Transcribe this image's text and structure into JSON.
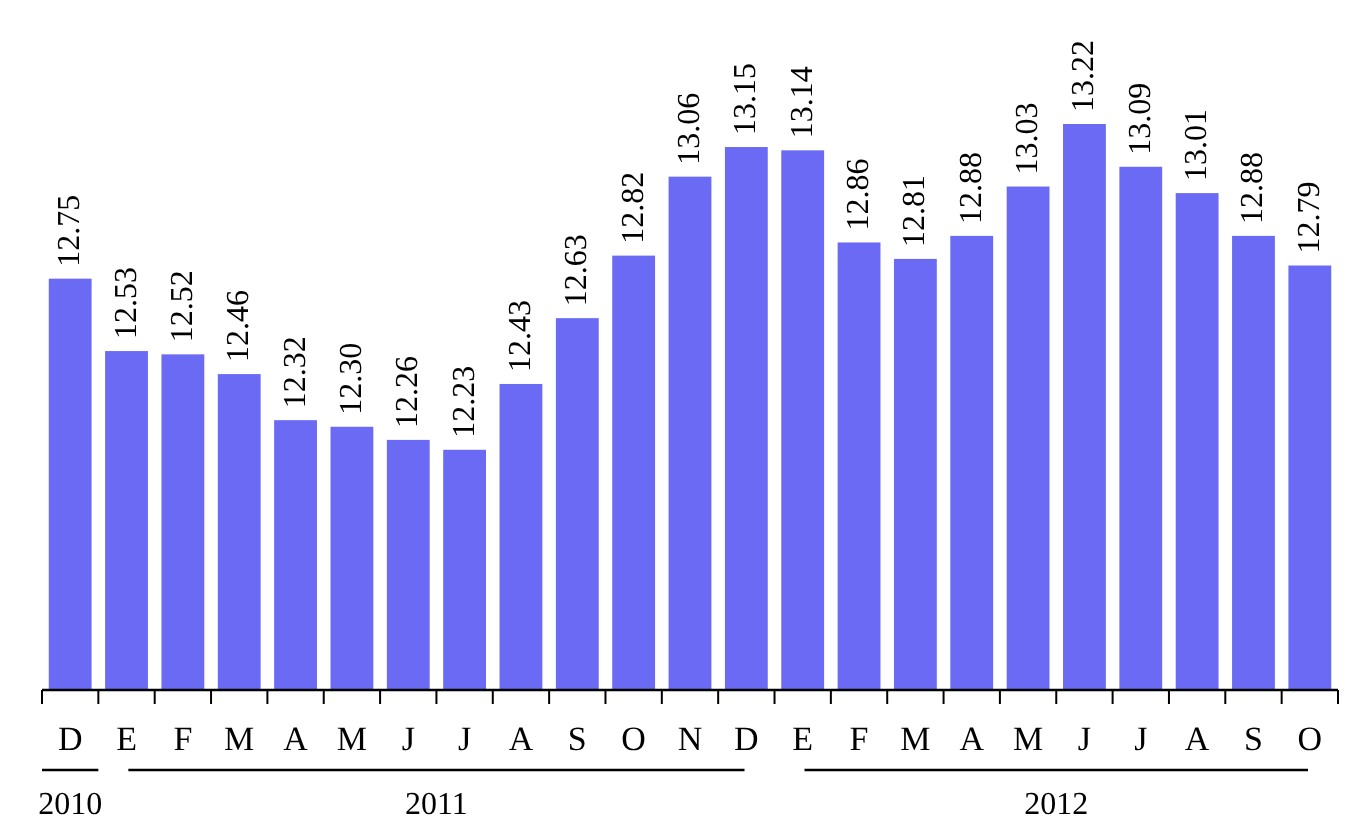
{
  "chart_data": {
    "type": "bar",
    "categories": [
      "D",
      "E",
      "F",
      "M",
      "A",
      "M",
      "J",
      "J",
      "A",
      "S",
      "O",
      "N",
      "D",
      "E",
      "F",
      "M",
      "A",
      "M",
      "J",
      "J",
      "A",
      "S",
      "O"
    ],
    "values": [
      12.75,
      12.53,
      12.52,
      12.46,
      12.32,
      12.3,
      12.26,
      12.23,
      12.43,
      12.63,
      12.82,
      13.06,
      13.15,
      13.14,
      12.86,
      12.81,
      12.88,
      13.03,
      13.22,
      13.09,
      13.01,
      12.88,
      12.79
    ],
    "value_labels": [
      "12.75",
      "12.53",
      "12.52",
      "12.46",
      "12.32",
      "12.30",
      "12.26",
      "12.23",
      "12.43",
      "12.63",
      "12.82",
      "13.06",
      "13.15",
      "13.14",
      "12.86",
      "12.81",
      "12.88",
      "13.03",
      "13.22",
      "13.09",
      "13.01",
      "12.88",
      "12.79"
    ],
    "color": "#6a6af5",
    "ylim": [
      11.5,
      13.22
    ],
    "annotations": [
      "2010",
      "2011",
      "2012"
    ]
  }
}
